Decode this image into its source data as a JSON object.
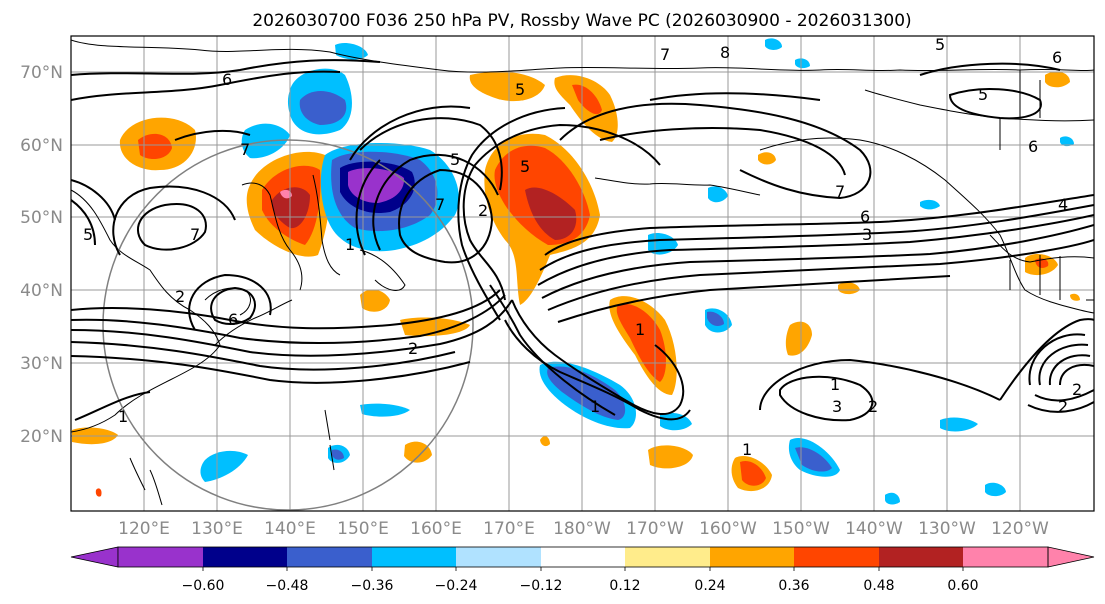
{
  "title": "2026030700 F036 250 hPa PV, Rossby Wave PC (2026030900 - 2026031300)",
  "lat_labels": [
    "70°N",
    "60°N",
    "50°N",
    "40°N",
    "30°N",
    "20°N"
  ],
  "lon_labels": [
    "120°E",
    "130°E",
    "140°E",
    "150°E",
    "160°E",
    "170°E",
    "180°W",
    "170°W",
    "160°W",
    "150°W",
    "140°W",
    "130°W",
    "120°W"
  ],
  "colorbar": {
    "colors": [
      "#9932cc",
      "#00008b",
      "#3a5fcd",
      "#00bfff",
      "#b0e2ff",
      "#ffffff",
      "#ffec8b",
      "#ffa500",
      "#ff4500",
      "#b22222",
      "#ff82ab"
    ],
    "tick_labels": [
      "−0.60",
      "−0.48",
      "−0.36",
      "−0.24",
      "−0.12",
      "0.12",
      "0.24",
      "0.36",
      "0.48",
      "0.60"
    ]
  },
  "contour_labels": [
    "6",
    "5",
    "8",
    "7",
    "5",
    "5",
    "6",
    "6",
    "7",
    "6",
    "4",
    "3",
    "5",
    "5",
    "7",
    "2",
    "7",
    "1",
    "2",
    "1",
    "3",
    "2",
    "1",
    "2",
    "1",
    "2",
    "1",
    "6",
    "7",
    "5",
    "1",
    "2"
  ]
}
